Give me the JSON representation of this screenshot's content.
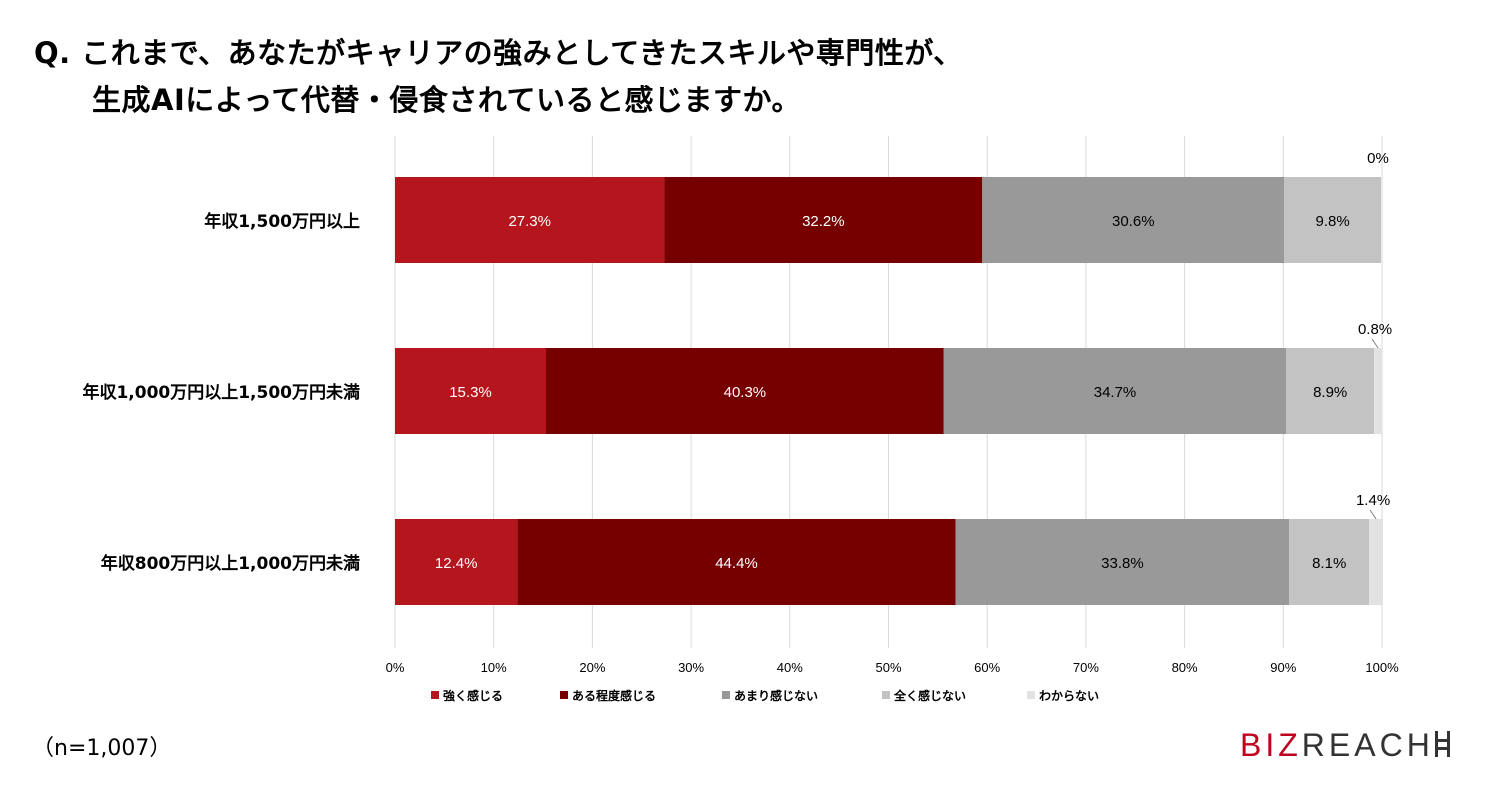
{
  "title": {
    "line1": "Q.  これまで、あなたがキャリアの強みとしてきたスキルや専門性が、",
    "line2": "生成AIによって代替・侵食されていると感じますか。"
  },
  "note": "（n=1,007）",
  "logo": {
    "brand_part1": "BIZ",
    "brand_part2": "REACH"
  },
  "chart_data": {
    "type": "bar",
    "orientation": "horizontal",
    "stacked": true,
    "title": "",
    "xlabel": "",
    "ylabel": "",
    "xlim": [
      0,
      100
    ],
    "x_ticks": [
      "0%",
      "10%",
      "20%",
      "30%",
      "40%",
      "50%",
      "60%",
      "70%",
      "80%",
      "90%",
      "100%"
    ],
    "grid": true,
    "legend_position": "bottom",
    "categories": [
      "年収1,500万円以上",
      "年収1,000万円以上1,500万円未満",
      "年収800万円以上1,000万円未満"
    ],
    "series": [
      {
        "name": "強く感じる",
        "color": "#b5151d",
        "label_color": "#ffffff",
        "values": [
          27.3,
          15.3,
          12.4
        ],
        "labels": [
          "27.3%",
          "15.3%",
          "12.4%"
        ]
      },
      {
        "name": "ある程度感じる",
        "color": "#760000",
        "label_color": "#ffffff",
        "values": [
          32.2,
          40.3,
          44.4
        ],
        "labels": [
          "32.2%",
          "40.3%",
          "44.4%"
        ]
      },
      {
        "name": "あまり感じない",
        "color": "#999999",
        "label_color": "#000000",
        "values": [
          30.6,
          34.7,
          33.8
        ],
        "labels": [
          "30.6%",
          "34.7%",
          "33.8%"
        ]
      },
      {
        "name": "全く感じない",
        "color": "#c3c3c3",
        "label_color": "#000000",
        "values": [
          9.8,
          8.9,
          8.1
        ],
        "labels": [
          "9.8%",
          "8.9%",
          "8.1%"
        ]
      },
      {
        "name": "わからない",
        "color": "#e2e2e2",
        "label_color": "#000000",
        "values": [
          0,
          0.8,
          1.4
        ],
        "labels": [
          "0%",
          "0.8%",
          "1.4%"
        ]
      }
    ]
  }
}
